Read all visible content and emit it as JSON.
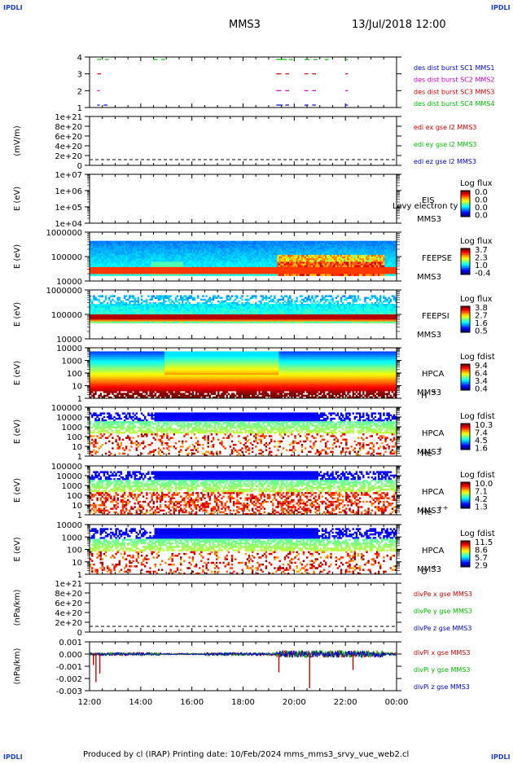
{
  "corners": {
    "top_left": "IPDLI",
    "top_right": "IPDLI",
    "bottom_left": "IPDLI",
    "bottom_right": "IPDLI"
  },
  "title": {
    "spacecraft": "MMS3",
    "datetime": "13/Jul/2018 12:00"
  },
  "footer": "Produced by cl (IRAP)   Printing date: 10/Feb/2024   mms_mms3_srvy_vue_web2.cl",
  "time_ticks": [
    "12:00",
    "14:00",
    "16:00",
    "18:00",
    "20:00",
    "22:00",
    "00:00"
  ],
  "chart_data": [
    {
      "id": "burst",
      "type": "scatter",
      "yticks": [
        "4",
        "3",
        "2",
        "1"
      ],
      "ylabel": "",
      "legend": [
        {
          "text": "des dist burst SC1 MMS1",
          "color": "#0000cc"
        },
        {
          "text": "des dist burst SC2 MMS2",
          "color": "#cc00cc"
        },
        {
          "text": "des dist burst SC3 MMS3",
          "color": "#cc0000"
        },
        {
          "text": "des dist burst SC4 MMS4",
          "color": "#00bb00"
        }
      ],
      "intervals_hours": [
        {
          "sc": 4,
          "spans": [
            [
              0.3,
              0.45
            ],
            [
              0.6,
              0.75
            ],
            [
              2.5,
              2.65
            ],
            [
              2.8,
              2.95
            ],
            [
              7.3,
              7.7
            ],
            [
              7.8,
              7.95
            ],
            [
              8.4,
              8.6
            ],
            [
              8.75,
              8.9
            ],
            [
              9.2,
              9.35
            ],
            [
              10.0,
              10.1
            ]
          ]
        },
        {
          "sc": 3,
          "spans": [
            [
              0.3,
              0.45
            ],
            [
              7.3,
              7.5
            ],
            [
              7.65,
              7.8
            ],
            [
              8.4,
              8.55
            ],
            [
              8.7,
              8.85
            ],
            [
              10.0,
              10.1
            ]
          ]
        },
        {
          "sc": 2,
          "spans": [
            [
              0.3,
              0.4
            ],
            [
              7.3,
              7.5
            ],
            [
              7.65,
              7.8
            ],
            [
              8.4,
              8.55
            ],
            [
              8.7,
              8.85
            ],
            [
              10.0,
              10.1
            ]
          ]
        },
        {
          "sc": 1,
          "spans": [
            [
              0.3,
              0.4
            ],
            [
              0.55,
              0.7
            ],
            [
              7.3,
              7.55
            ],
            [
              7.65,
              7.8
            ],
            [
              8.4,
              8.55
            ],
            [
              8.7,
              8.85
            ],
            [
              10.0,
              10.1
            ]
          ]
        }
      ]
    },
    {
      "id": "edi",
      "type": "line",
      "ylabel": "(mV/m)",
      "yticks": [
        "1e+21",
        "8e+20",
        "6e+20",
        "4e+20",
        "2e+20",
        "0"
      ],
      "legend": [
        {
          "text": "edi ex gse l2 MMS3",
          "color": "#cc0000"
        },
        {
          "text": "edi ey gse l2 MMS3",
          "color": "#00bb00"
        },
        {
          "text": "edi ez gse l2 MMS3",
          "color": "#0000cc"
        }
      ]
    },
    {
      "id": "eis",
      "type": "heatmap",
      "ylabel": "E (eV)",
      "yticks": [
        "1e+07",
        "1e+06",
        "1e+05",
        "1e+04"
      ],
      "right_label": [
        "EIS",
        "MMS3"
      ],
      "overlay_label": "Levy electron ty",
      "colorbar": {
        "title": "Log flux",
        "ticks": [
          "0.0",
          "0.0",
          "0.0",
          "0.0"
        ]
      }
    },
    {
      "id": "feepse",
      "type": "heatmap",
      "ylabel": "E (eV)",
      "yticks": [
        "1000000",
        "100000",
        "10000"
      ],
      "right_label": [
        "FEEPSE",
        "MMS3"
      ],
      "colorbar": {
        "title": "Log flux",
        "ticks": [
          "3.7",
          "2.3",
          "1.0",
          "-0.4"
        ]
      }
    },
    {
      "id": "feepsi",
      "type": "heatmap",
      "ylabel": "E (eV)",
      "yticks": [
        "1000000",
        "100000",
        "10000"
      ],
      "right_label": [
        "FEEPSI",
        "MMS3"
      ],
      "colorbar": {
        "title": "Log flux",
        "ticks": [
          "3.8",
          "2.7",
          "1.6",
          "0.5"
        ]
      }
    },
    {
      "id": "hpca_h",
      "type": "heatmap",
      "ylabel": "E (eV)",
      "yticks": [
        "10000",
        "1000",
        "100",
        "10",
        "1"
      ],
      "right_label": [
        "HPCA",
        "MMS3"
      ],
      "species": "H",
      "species_sup": "+",
      "colorbar": {
        "title": "Log fdist",
        "ticks": [
          "9.4",
          "6.4",
          "3.4",
          "0.4"
        ]
      }
    },
    {
      "id": "hpca_he",
      "type": "heatmap",
      "ylabel": "E (eV)",
      "yticks": [
        "100000",
        "10000",
        "1000",
        "100",
        "10",
        "1"
      ],
      "right_label": [
        "HPCA",
        "MMS3"
      ],
      "species": "He",
      "species_sup": "+",
      "colorbar": {
        "title": "Log fdist",
        "ticks": [
          "10.3",
          "7.4",
          "4.5",
          "1.6"
        ]
      }
    },
    {
      "id": "hpca_hepp",
      "type": "heatmap",
      "ylabel": "E (eV)",
      "yticks": [
        "100000",
        "10000",
        "1000",
        "100",
        "10",
        "1"
      ],
      "right_label": [
        "HPCA",
        "MMS3"
      ],
      "species": "He",
      "species_sup": "++",
      "colorbar": {
        "title": "Log fdist",
        "ticks": [
          "10.0",
          "7.1",
          "4.2",
          "1.3"
        ]
      }
    },
    {
      "id": "hpca_o",
      "type": "heatmap",
      "ylabel": "E (eV)",
      "yticks": [
        "10000",
        "1000",
        "100",
        "10",
        "1"
      ],
      "right_label": [
        "HPCA",
        "MMS3"
      ],
      "species": "O",
      "species_sup": "+",
      "colorbar": {
        "title": "Log fdist",
        "ticks": [
          "11.5",
          "8.6",
          "5.7",
          "2.9"
        ]
      }
    },
    {
      "id": "divpe",
      "type": "line",
      "ylabel": "(nPa/km)",
      "yticks": [
        "1e+21",
        "8e+20",
        "6e+20",
        "4e+20",
        "2e+20",
        "0"
      ],
      "legend": [
        {
          "text": "divPe x gse MMS3",
          "color": "#cc0000"
        },
        {
          "text": "divPe y gse MMS3",
          "color": "#00bb00"
        },
        {
          "text": "divPe z gse MMS3",
          "color": "#0000cc"
        }
      ]
    },
    {
      "id": "divpi",
      "type": "line",
      "ylabel": "(nPa/km)",
      "yticks": [
        "0.001",
        "0.000",
        "-0.001",
        "-0.002",
        "-0.003"
      ],
      "ylim": [
        -0.003,
        0.001
      ],
      "legend": [
        {
          "text": "divPi x gse MMS3",
          "color": "#cc0000"
        },
        {
          "text": "divPi y gse MMS3",
          "color": "#00bb00"
        },
        {
          "text": "divPi z gse MMS3",
          "color": "#0000cc"
        }
      ],
      "spikes": [
        {
          "t": 0.25,
          "v": -0.0023
        },
        {
          "t": 0.4,
          "v": -0.0016
        },
        {
          "t": 7.4,
          "v": -0.0015
        },
        {
          "t": 8.6,
          "v": -0.0028
        },
        {
          "t": 10.3,
          "v": -0.0013
        },
        {
          "t": 0.15,
          "v": -0.0009
        }
      ]
    }
  ]
}
